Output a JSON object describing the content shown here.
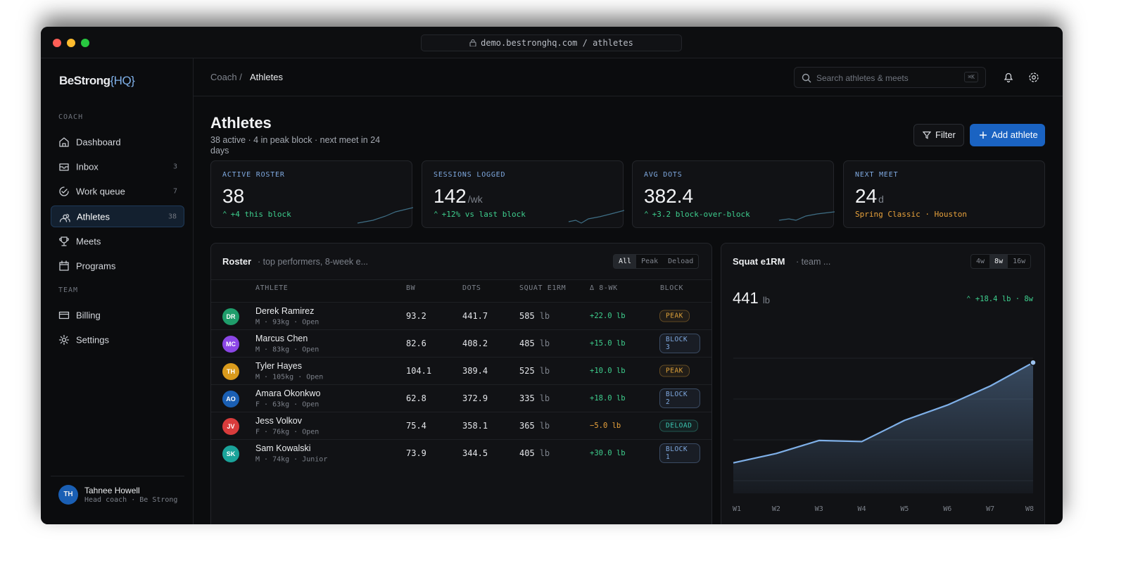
{
  "browser": {
    "url": "demo.bestronghq.com / athletes"
  },
  "sidebar": {
    "brand": "BeStrong",
    "brand_accent": "{HQ}",
    "sections": [
      {
        "label": "COACH",
        "items": [
          {
            "label": "Dashboard"
          },
          {
            "label": "Inbox",
            "count": 3
          },
          {
            "label": "Work queue",
            "count": 7
          },
          {
            "label": "Athletes",
            "count": 38,
            "active": true
          },
          {
            "label": "Meets"
          },
          {
            "label": "Programs"
          }
        ]
      },
      {
        "label": "TEAM",
        "items": [
          {
            "label": "Billing"
          },
          {
            "label": "Settings"
          }
        ]
      }
    ],
    "user": {
      "initials": "TH",
      "name": "Tahnee Howell",
      "role": "Head coach · Be Strong"
    }
  },
  "topbar": {
    "breadcrumb_parent": "Coach /",
    "breadcrumb_current": "Athletes",
    "search_placeholder": "Search athletes & meets",
    "search_shortcut": "⌘K"
  },
  "page": {
    "title": "Athletes",
    "subtitle": "38 active · 4 in peak block · next meet in 24 days",
    "filter": "Filter",
    "add": "Add athlete"
  },
  "stats": [
    {
      "label": "ACTIVE ROSTER",
      "value": 38,
      "delta": "+4 this block"
    },
    {
      "label": "SESSIONS LOGGED",
      "value": 142,
      "unit": "/wk",
      "delta": "+12% vs last block"
    },
    {
      "label": "AVG DOTS",
      "value": 382.4,
      "delta": "+3.2 block-over-block"
    },
    {
      "label": "NEXT MEET",
      "value": 24,
      "unit": "d",
      "note": "Spring Classic · Houston"
    }
  ],
  "roster": {
    "title": "Roster",
    "subtitle": "· top performers, 8-week e...",
    "filters": [
      "All",
      "Peak",
      "Deload"
    ],
    "active_filter": 0,
    "columns": [
      "ATHLETE",
      "BW",
      "DOTS",
      "SQUAT E1RM",
      "Δ 8-WK",
      "BLOCK"
    ],
    "unit": "lb",
    "rows": [
      {
        "initials": "DR",
        "color": "#1f9d6b",
        "name": "Derek Ramirez",
        "meta": "M · 93kg · Open",
        "bw": 93.2,
        "dots": 441.7,
        "squat": 585,
        "delta": "+22.0 lb",
        "delta_color": "#3ecf8e",
        "block": "PEAK",
        "block_color": "#e0a33a"
      },
      {
        "initials": "MC",
        "color": "#8b46e6",
        "name": "Marcus Chen",
        "meta": "M · 83kg · Open",
        "bw": 82.6,
        "dots": 408.2,
        "squat": 485,
        "delta": "+15.0 lb",
        "delta_color": "#3ecf8e",
        "block": "BLOCK 3",
        "block_color": "#7fa9e0"
      },
      {
        "initials": "TH",
        "color": "#d99a1c",
        "name": "Tyler Hayes",
        "meta": "M · 105kg · Open",
        "bw": 104.1,
        "dots": 389.4,
        "squat": 525,
        "delta": "+10.0 lb",
        "delta_color": "#3ecf8e",
        "block": "PEAK",
        "block_color": "#e0a33a"
      },
      {
        "initials": "AO",
        "color": "#1a5fb4",
        "name": "Amara Okonkwo",
        "meta": "F · 63kg · Open",
        "bw": 62.8,
        "dots": 372.9,
        "squat": 335,
        "delta": "+18.0 lb",
        "delta_color": "#3ecf8e",
        "block": "BLOCK 2",
        "block_color": "#7fa9e0"
      },
      {
        "initials": "JV",
        "color": "#d93c3c",
        "name": "Jess Volkov",
        "meta": "F · 76kg · Open",
        "bw": 75.4,
        "dots": 358.1,
        "squat": 365,
        "delta": "−5.0 lb",
        "delta_color": "#e8a23c",
        "block": "DELOAD",
        "block_color": "#3cc8b4"
      },
      {
        "initials": "SK",
        "color": "#1aa39a",
        "name": "Sam Kowalski",
        "meta": "M · 74kg · Junior",
        "bw": 73.9,
        "dots": 344.5,
        "squat": 405,
        "delta": "+30.0 lb",
        "delta_color": "#3ecf8e",
        "block": "BLOCK 1",
        "block_color": "#7fa9e0"
      }
    ]
  },
  "chart_data": {
    "type": "line",
    "title": "Squat e1RM",
    "subtitle": "· team ...",
    "ranges": [
      "4w",
      "8w",
      "16w"
    ],
    "active_range": 1,
    "current": 441,
    "unit": "lb",
    "change": "+18.4 lb · 8w",
    "categories": [
      "W1",
      "W2",
      "W3",
      "W4",
      "W5",
      "W6",
      "W7",
      "W8"
    ],
    "values": [
      422.6,
      424.3,
      426.7,
      426.5,
      430.4,
      433.2,
      436.7,
      441.0
    ],
    "color": "#7fb0e8",
    "ylim": [
      417,
      448
    ],
    "grid": true
  }
}
